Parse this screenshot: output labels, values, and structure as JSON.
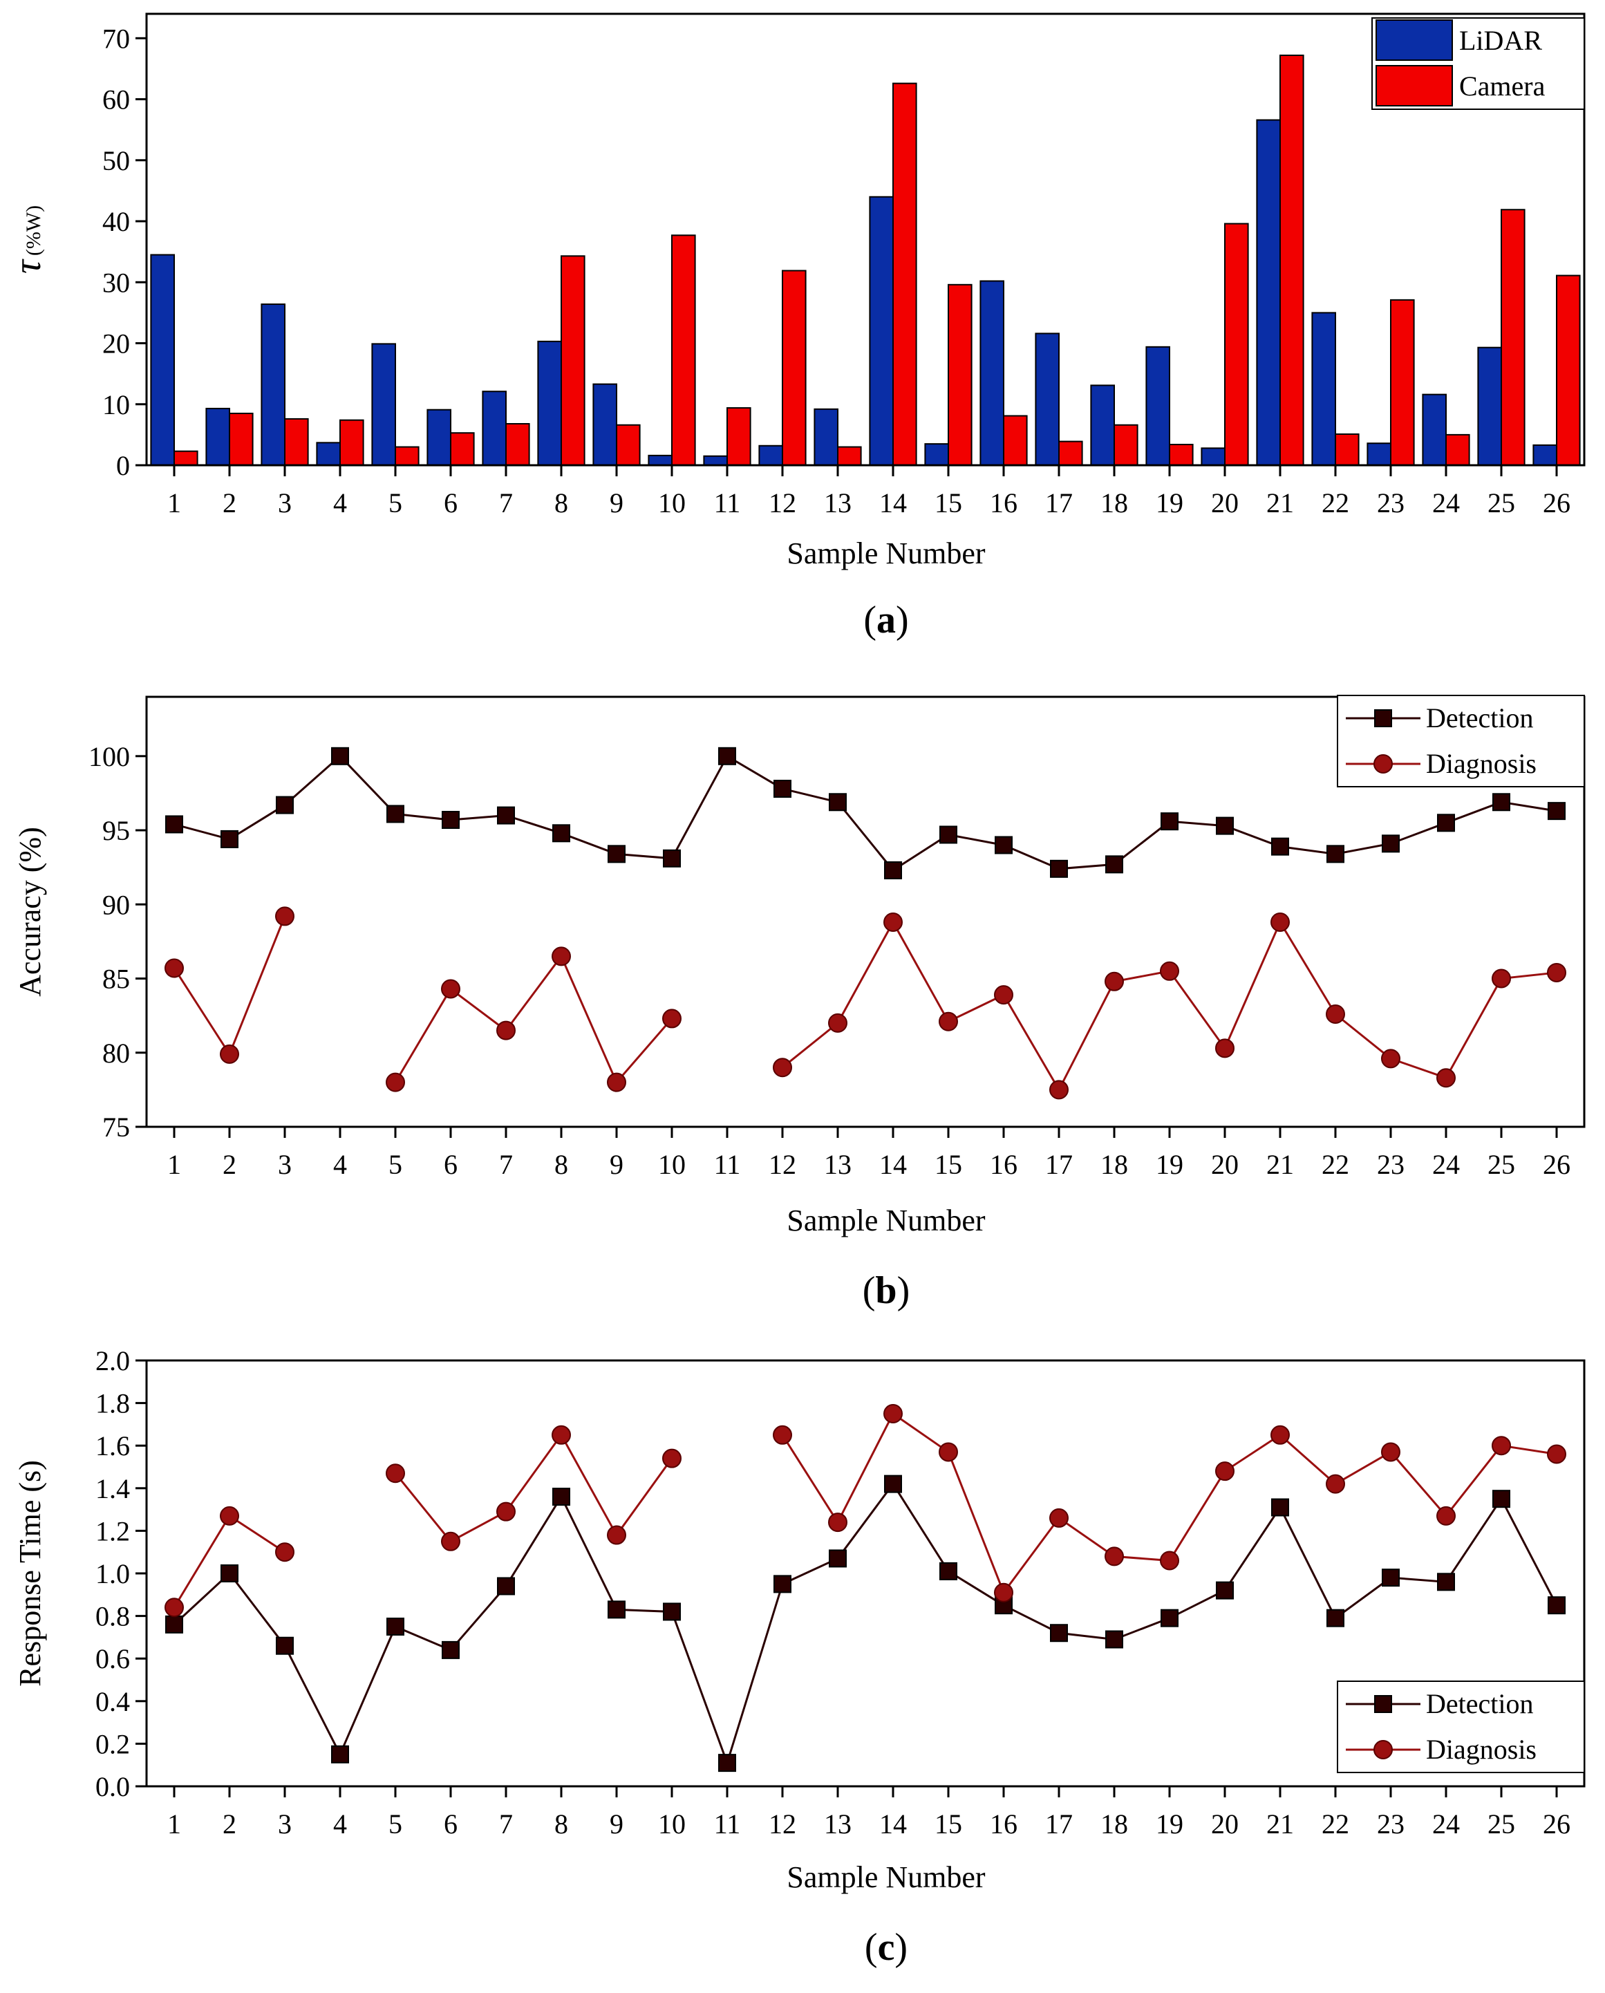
{
  "chart_data": [
    {
      "type": "bar",
      "panel_label": "a",
      "categories": [
        "1",
        "2",
        "3",
        "4",
        "5",
        "6",
        "7",
        "8",
        "9",
        "10",
        "11",
        "12",
        "13",
        "14",
        "15",
        "16",
        "17",
        "18",
        "19",
        "20",
        "21",
        "22",
        "23",
        "24",
        "25",
        "26"
      ],
      "series": [
        {
          "name": "LiDAR",
          "color": "#0a2ea6",
          "values": [
            34.5,
            9.3,
            26.4,
            3.7,
            19.9,
            9.1,
            12.1,
            20.3,
            13.3,
            1.6,
            1.5,
            3.2,
            9.2,
            44.0,
            3.5,
            30.2,
            21.6,
            13.1,
            19.4,
            2.8,
            56.6,
            25.0,
            3.6,
            11.6,
            19.3,
            3.3
          ]
        },
        {
          "name": "Camera",
          "color": "#f20000",
          "values": [
            2.3,
            8.5,
            7.6,
            7.4,
            3.0,
            5.3,
            6.8,
            34.3,
            6.6,
            37.7,
            9.4,
            31.9,
            3.0,
            62.6,
            29.6,
            8.1,
            3.9,
            6.6,
            3.4,
            39.6,
            67.2,
            5.1,
            27.1,
            5.0,
            41.9,
            31.1
          ]
        }
      ],
      "xlabel": "Sample Number",
      "ylabel_symbol": "τ",
      "ylabel_unit": "(%W)",
      "ylim": [
        0,
        74
      ],
      "yticks": [
        0,
        10,
        20,
        30,
        40,
        50,
        60,
        70
      ],
      "legend_position": "top-right"
    },
    {
      "type": "line",
      "panel_label": "b",
      "x": [
        "1",
        "2",
        "3",
        "4",
        "5",
        "6",
        "7",
        "8",
        "9",
        "10",
        "11",
        "12",
        "13",
        "14",
        "15",
        "16",
        "17",
        "18",
        "19",
        "20",
        "21",
        "22",
        "23",
        "24",
        "25",
        "26"
      ],
      "series": [
        {
          "name": "Detection",
          "color": "#2a0000",
          "marker": "square",
          "values": [
            95.4,
            94.4,
            96.7,
            100.0,
            96.1,
            95.7,
            96.0,
            94.8,
            93.4,
            93.1,
            100.0,
            97.8,
            96.9,
            92.3,
            94.7,
            94.0,
            92.4,
            92.7,
            95.6,
            95.3,
            93.9,
            93.4,
            94.1,
            95.5,
            96.9,
            96.3
          ]
        },
        {
          "name": "Diagnosis",
          "color": "#9a1010",
          "marker": "circle",
          "values": [
            85.7,
            79.9,
            89.2,
            null,
            78.0,
            84.3,
            81.5,
            86.5,
            78.0,
            82.3,
            null,
            79.0,
            82.0,
            88.8,
            82.1,
            83.9,
            77.5,
            84.8,
            85.5,
            80.3,
            88.8,
            82.6,
            79.6,
            78.3,
            85.0,
            85.4
          ]
        }
      ],
      "xlabel": "Sample Number",
      "ylabel": "Accuracy (%)",
      "ylim": [
        75,
        104
      ],
      "yticks": [
        75,
        80,
        85,
        90,
        95,
        100
      ],
      "legend_position": "top-right"
    },
    {
      "type": "line",
      "panel_label": "c",
      "x": [
        "1",
        "2",
        "3",
        "4",
        "5",
        "6",
        "7",
        "8",
        "9",
        "10",
        "11",
        "12",
        "13",
        "14",
        "15",
        "16",
        "17",
        "18",
        "19",
        "20",
        "21",
        "22",
        "23",
        "24",
        "25",
        "26"
      ],
      "series": [
        {
          "name": "Detection",
          "color": "#2a0000",
          "marker": "square",
          "values": [
            0.76,
            1.0,
            0.66,
            0.15,
            0.75,
            0.64,
            0.94,
            1.36,
            0.83,
            0.82,
            0.11,
            0.95,
            1.07,
            1.42,
            1.01,
            0.85,
            0.72,
            0.69,
            0.79,
            0.92,
            1.31,
            0.79,
            0.98,
            0.96,
            1.35,
            0.85
          ]
        },
        {
          "name": "Diagnosis",
          "color": "#9a1010",
          "marker": "circle",
          "values": [
            0.84,
            1.27,
            1.1,
            null,
            1.47,
            1.15,
            1.29,
            1.65,
            1.18,
            1.54,
            null,
            1.65,
            1.24,
            1.75,
            1.57,
            0.91,
            1.26,
            1.08,
            1.06,
            1.48,
            1.65,
            1.42,
            1.57,
            1.27,
            1.6,
            1.56
          ]
        }
      ],
      "xlabel": "Sample Number",
      "ylabel": "Response Time (s)",
      "ylim": [
        0.0,
        2.0
      ],
      "yticks": [
        "0.0",
        "0.2",
        "0.4",
        "0.6",
        "0.8",
        "1.0",
        "1.2",
        "1.4",
        "1.6",
        "1.8",
        "2.0"
      ],
      "legend_position": "bottom-right"
    }
  ]
}
